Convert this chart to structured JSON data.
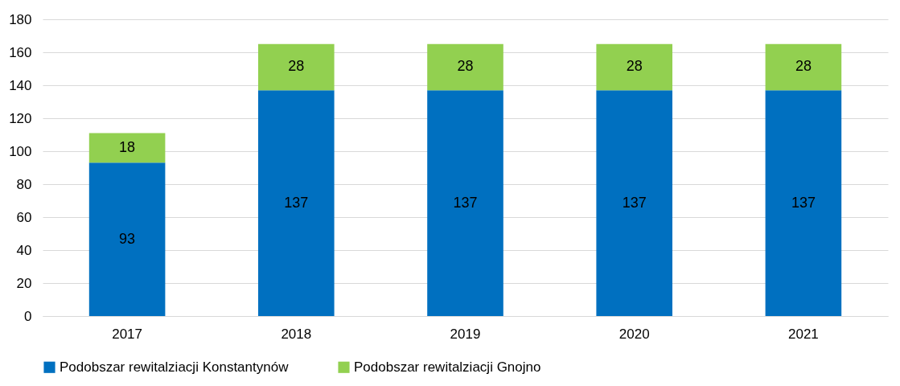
{
  "chart_data": {
    "type": "bar",
    "stacked": true,
    "categories": [
      "2017",
      "2018",
      "2019",
      "2020",
      "2021"
    ],
    "series": [
      {
        "name": "Podobszar rewitalziacji Konstantynów",
        "color": "#0070c0",
        "values": [
          93,
          137,
          137,
          137,
          137
        ]
      },
      {
        "name": "Podobszar rewitalziacji Gnojno",
        "color": "#92d050",
        "values": [
          18,
          28,
          28,
          28,
          28
        ]
      }
    ],
    "ylim": [
      0,
      180
    ],
    "yticks": [
      0,
      20,
      40,
      60,
      80,
      100,
      120,
      140,
      160,
      180
    ],
    "grid": "y",
    "legend": "bottom",
    "data_labels": true
  }
}
